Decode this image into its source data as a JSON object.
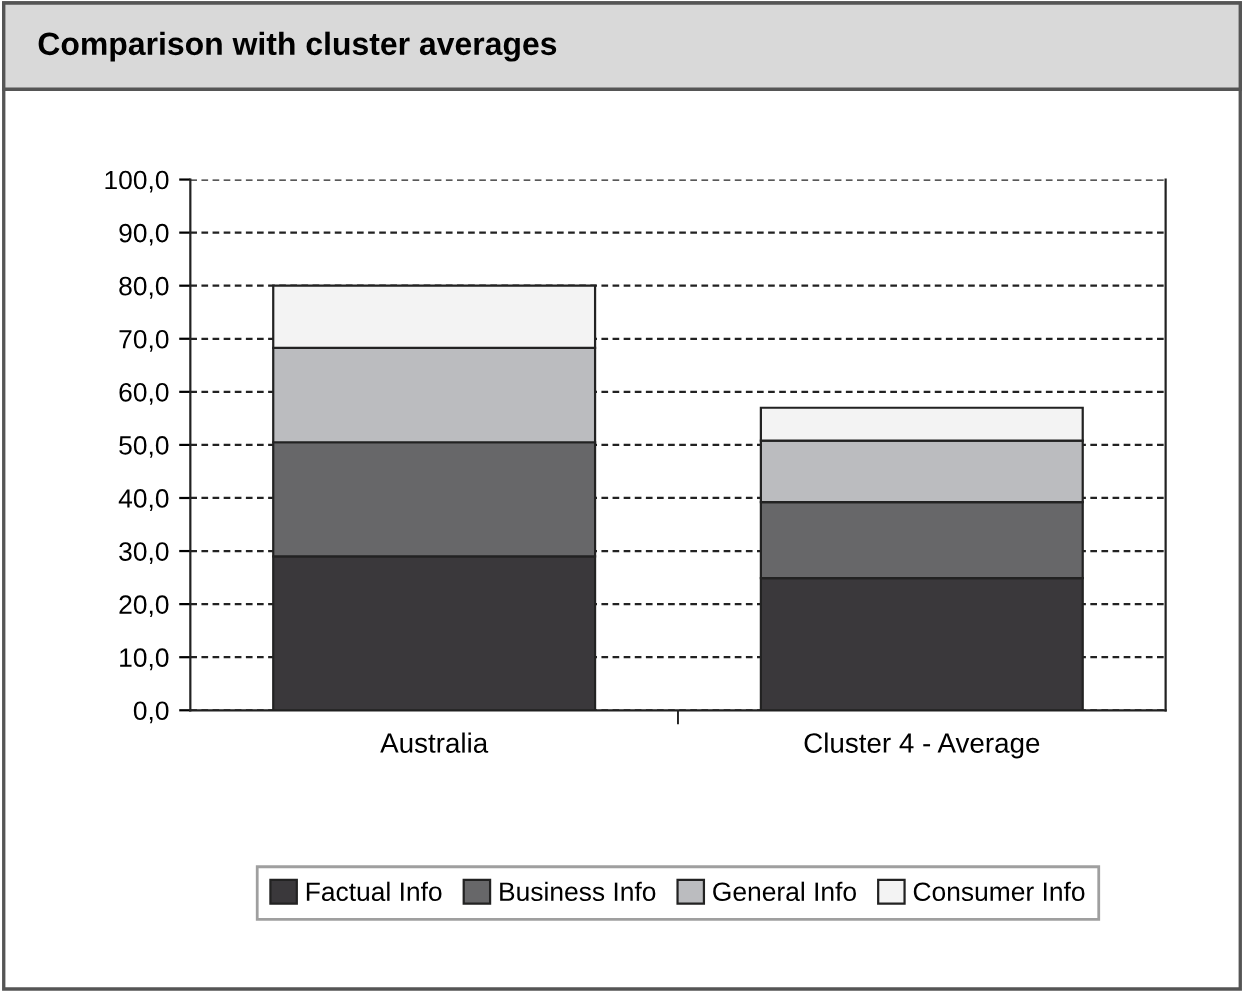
{
  "chart_data": {
    "type": "bar",
    "title": "Comparison with cluster averages",
    "stacked": true,
    "categories": [
      "Australia",
      "Cluster 4 - Average"
    ],
    "series": [
      {
        "name": "Factual Info",
        "color": "#3a383b",
        "values": [
          29.0,
          24.9
        ]
      },
      {
        "name": "Business Info",
        "color": "#676769",
        "values": [
          21.5,
          14.3
        ]
      },
      {
        "name": "General Info",
        "color": "#bbbcbf",
        "values": [
          17.8,
          11.6
        ]
      },
      {
        "name": "Consumer Info",
        "color": "#f3f3f3",
        "values": [
          11.7,
          6.2
        ]
      }
    ],
    "ylim": [
      0,
      100
    ],
    "yticks": [
      {
        "value": 0,
        "label": "0,0"
      },
      {
        "value": 10,
        "label": "10,0"
      },
      {
        "value": 20,
        "label": "20,0"
      },
      {
        "value": 30,
        "label": "30,0"
      },
      {
        "value": 40,
        "label": "40,0"
      },
      {
        "value": 50,
        "label": "50,0"
      },
      {
        "value": 60,
        "label": "60,0"
      },
      {
        "value": 70,
        "label": "70,0"
      },
      {
        "value": 80,
        "label": "80,0"
      },
      {
        "value": 90,
        "label": "90,0"
      },
      {
        "value": 100,
        "label": "100,0"
      }
    ],
    "grid": "y",
    "legend": "bottom"
  }
}
